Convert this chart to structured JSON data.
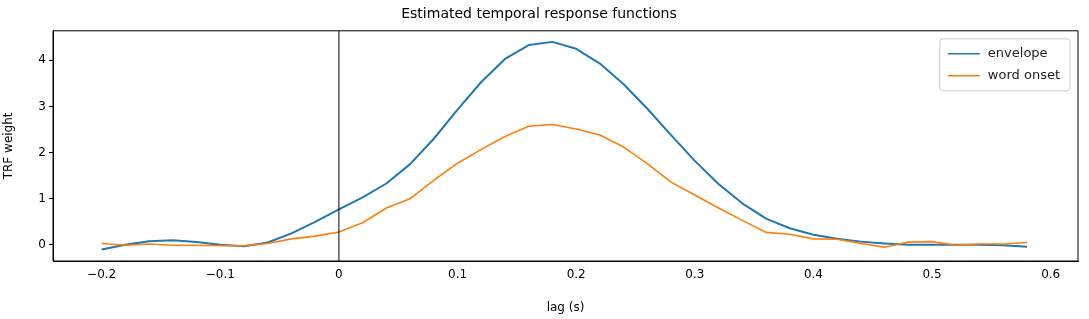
{
  "chart_data": {
    "type": "line",
    "title": "Estimated temporal response functions",
    "xlabel": "lag (s)",
    "ylabel": "TRF weight",
    "x": [
      -0.2,
      -0.18,
      -0.16,
      -0.14,
      -0.12,
      -0.1,
      -0.08,
      -0.06,
      -0.04,
      -0.02,
      0,
      0.02,
      0.04,
      0.06,
      0.08,
      0.1,
      0.12,
      0.14,
      0.16,
      0.18,
      0.2,
      0.22,
      0.24,
      0.26,
      0.28,
      0.3,
      0.32,
      0.34,
      0.36,
      0.38,
      0.4,
      0.42,
      0.44,
      0.46,
      0.48,
      0.5,
      0.52,
      0.54,
      0.56,
      0.58
    ],
    "series": [
      {
        "name": "envelope",
        "color": "#1f77b4",
        "values": [
          -0.1,
          0,
          0.08,
          0.1,
          0.06,
          0,
          -0.03,
          0.05,
          0.25,
          0.5,
          0.77,
          1.03,
          1.33,
          1.75,
          2.3,
          2.93,
          3.53,
          4.03,
          4.33,
          4.4,
          4.25,
          3.93,
          3.48,
          2.95,
          2.38,
          1.82,
          1.32,
          0.9,
          0.57,
          0.36,
          0.22,
          0.13,
          0.07,
          0.03,
          0,
          0,
          0,
          0,
          -0.01,
          -0.04
        ]
      },
      {
        "name": "word onset",
        "color": "#ff7f0e",
        "values": [
          0.03,
          -0.01,
          0.02,
          -0.01,
          -0.01,
          -0.02,
          -0.02,
          0.03,
          0.13,
          0.19,
          0.28,
          0.48,
          0.8,
          1.0,
          1.4,
          1.77,
          2.07,
          2.35,
          2.57,
          2.61,
          2.51,
          2.38,
          2.12,
          1.76,
          1.36,
          1.08,
          0.8,
          0.53,
          0.27,
          0.23,
          0.13,
          0.12,
          0.03,
          -0.05,
          0.06,
          0.07,
          -0.01,
          0.02,
          0.02,
          0.05
        ]
      }
    ],
    "xlim": [
      -0.241,
      0.623
    ],
    "ylim": [
      -0.35,
      4.64
    ],
    "xticks": [
      {
        "value": -0.2,
        "label": "−0.2"
      },
      {
        "value": -0.1,
        "label": "−0.1"
      },
      0.0,
      0.1,
      0.2,
      0.3,
      0.4,
      0.5,
      0.6
    ],
    "yticks": [
      0,
      1,
      2,
      3,
      4
    ],
    "ref_lines": [
      {
        "axis": "x",
        "value": 0,
        "color": "#000000"
      }
    ],
    "legend": "top right",
    "grid": false,
    "line_style": "solid",
    "marker": "none"
  }
}
